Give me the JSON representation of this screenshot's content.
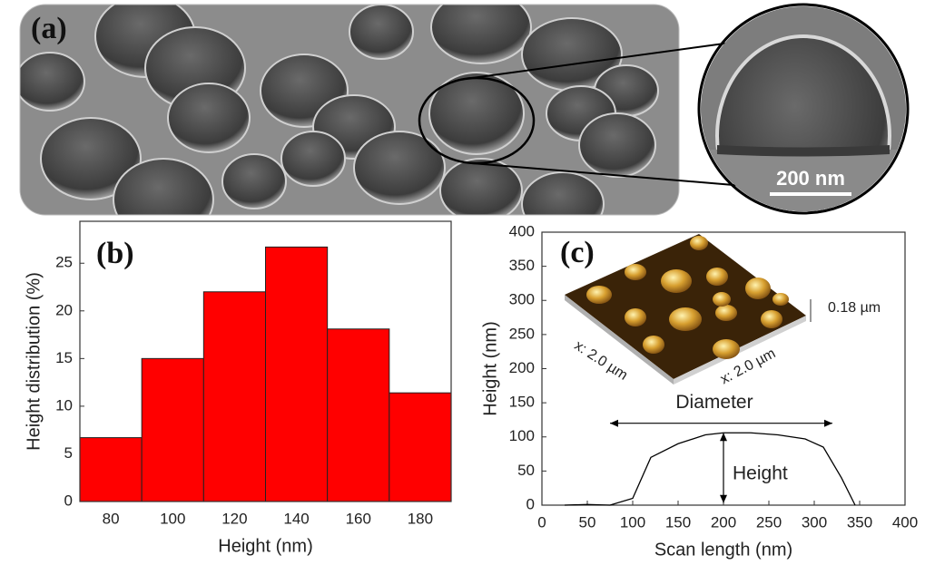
{
  "panel_a": {
    "label": "(a)",
    "scale_bar": "200 nm"
  },
  "chart_data": [
    {
      "type": "histogram",
      "panel_label": "(b)",
      "x_label": "Height (nm)",
      "y_label": "Height distribution (%)",
      "bins": [
        70,
        90,
        110,
        130,
        150,
        170,
        190
      ],
      "values": [
        6.7,
        15,
        22,
        26.7,
        18.1,
        11.4
      ],
      "color": "#ff0000",
      "xlim": [
        70,
        190
      ],
      "xticks": [
        80,
        100,
        120,
        140,
        160,
        180
      ],
      "ylim": [
        0,
        29.4
      ],
      "yticks": [
        0,
        5,
        10,
        15,
        20,
        25
      ]
    },
    {
      "type": "line",
      "panel_label": "(c)",
      "x_label": "Scan length (nm)",
      "y_label": "Height (nm)",
      "x": [
        25,
        50,
        75,
        100,
        120,
        150,
        180,
        200,
        230,
        260,
        290,
        310,
        330,
        345
      ],
      "values": [
        0,
        1,
        0,
        10,
        70,
        90,
        103,
        106,
        106,
        103,
        97,
        85,
        40,
        0
      ],
      "color": "#000000",
      "xlim": [
        0,
        400
      ],
      "xticks": [
        0,
        50,
        100,
        150,
        200,
        250,
        300,
        350,
        400
      ],
      "ylim": [
        0,
        400
      ],
      "yticks": [
        0,
        50,
        100,
        150,
        200,
        250,
        300,
        350,
        400
      ],
      "annotations": {
        "diameter": "Diameter",
        "height": "Height",
        "inset_z": "0.18 µm",
        "inset_x": "x: 2.0 µm",
        "inset_y": "x: 2.0 µm"
      }
    }
  ]
}
